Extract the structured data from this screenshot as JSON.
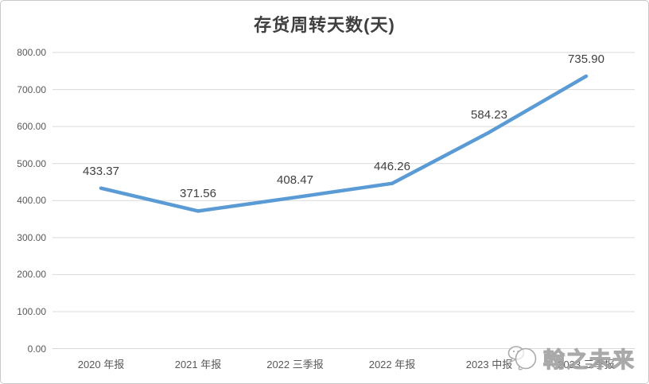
{
  "chart_data": {
    "type": "line",
    "title": "存货周转天数(天)",
    "categories": [
      "2020 年报",
      "2021 年报",
      "2022 三季报",
      "2022 年报",
      "2023 中报",
      "2023 三季报"
    ],
    "series": [
      {
        "name": "存货周转天数",
        "values": [
          433.37,
          371.56,
          408.47,
          446.26,
          584.23,
          735.9
        ],
        "data_labels": [
          "433.37",
          "371.56",
          "408.47",
          "446.26",
          "584.23",
          "735.90"
        ]
      }
    ],
    "xlabel": "",
    "ylabel": "",
    "ylim": [
      0,
      800
    ],
    "y_tick_step": 100,
    "y_tick_labels": [
      "0.00",
      "100.00",
      "200.00",
      "300.00",
      "400.00",
      "500.00",
      "600.00",
      "700.00",
      "800.00"
    ],
    "grid": true,
    "legend_position": "none",
    "markers": false
  },
  "colors": {
    "line": "#5B9BD5",
    "gridline": "#D9D9D9",
    "axis_text": "#595959",
    "data_label_text": "#404040",
    "title_text": "#3F3F3F",
    "frame_border": "#C9C9C9",
    "watermark": "#A0A0A0"
  },
  "watermark": {
    "text": "翰之未来",
    "logo": "speech-bubbles-logo"
  }
}
